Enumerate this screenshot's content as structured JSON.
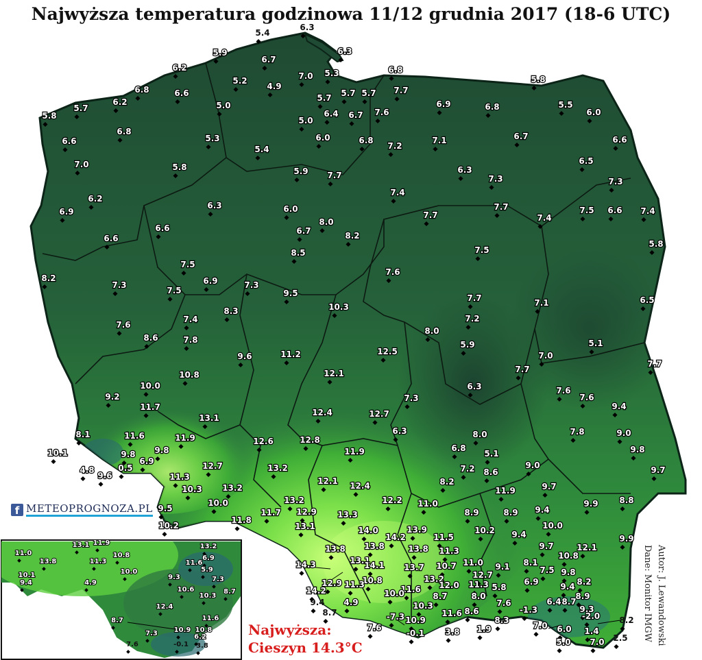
{
  "title": "Najwyższa temperatura godzinowa 11/12 grudnia 2017 (18-6 UTC)",
  "max_note": {
    "line1": "Najwyższa:",
    "line2": "Cieszyn 14.3°C"
  },
  "credits": {
    "author": "Autor: J. Lewandowski",
    "source": "Dane: Monitor IMGW"
  },
  "logo": {
    "icon": "facebook-icon",
    "text": "METEOPROGNOZA.PL"
  },
  "colors": {
    "dark_green": "#1f4a33",
    "mid_green": "#2f7a40",
    "bright_green": "#48c23a",
    "light_green": "#a8f06a",
    "highlight": "#d81d1d"
  },
  "stations": [
    [
      "5.4",
      383,
      52
    ],
    [
      "6.3",
      448,
      44
    ],
    [
      "6.3",
      503,
      79
    ],
    [
      "5.9",
      321,
      81
    ],
    [
      "6.7",
      392,
      91
    ],
    [
      "5.3",
      484,
      111
    ],
    [
      "6.8",
      577,
      106
    ],
    [
      "6.2",
      262,
      103
    ],
    [
      "5.2",
      350,
      122
    ],
    [
      "4.9",
      400,
      130
    ],
    [
      "7.0",
      446,
      115
    ],
    [
      "5.7",
      473,
      147
    ],
    [
      "5.7",
      508,
      140
    ],
    [
      "5.7",
      538,
      140
    ],
    [
      "7.7",
      585,
      136
    ],
    [
      "5.8",
      785,
      120
    ],
    [
      "6.8",
      207,
      135
    ],
    [
      "6.6",
      265,
      140
    ],
    [
      "5.0",
      326,
      158
    ],
    [
      "6.4",
      483,
      170
    ],
    [
      "6.7",
      519,
      172
    ],
    [
      "7.6",
      557,
      168
    ],
    [
      "6.9",
      647,
      156
    ],
    [
      "6.8",
      718,
      160
    ],
    [
      "5.5",
      825,
      157
    ],
    [
      "6.0",
      866,
      168
    ],
    [
      "5.7",
      118,
      162
    ],
    [
      "6.2",
      175,
      153
    ],
    [
      "5.0",
      446,
      180
    ],
    [
      "6.0",
      471,
      205
    ],
    [
      "6.8",
      534,
      209
    ],
    [
      "7.2",
      576,
      217
    ],
    [
      "7.1",
      641,
      209
    ],
    [
      "6.7",
      760,
      203
    ],
    [
      "6.6",
      904,
      208
    ],
    [
      "5.8",
      72,
      173
    ],
    [
      "6.6",
      101,
      210
    ],
    [
      "6.8",
      181,
      196
    ],
    [
      "5.3",
      310,
      206
    ],
    [
      "5.4",
      382,
      222
    ],
    [
      "6.5",
      855,
      239
    ],
    [
      "7.0",
      119,
      244
    ],
    [
      "5.8",
      262,
      248
    ],
    [
      "5.9",
      439,
      254
    ],
    [
      "7.7",
      488,
      260
    ],
    [
      "6.3",
      678,
      252
    ],
    [
      "7.3",
      723,
      265
    ],
    [
      "7.3",
      898,
      269
    ],
    [
      "6.2",
      139,
      294
    ],
    [
      "7.4",
      580,
      285
    ],
    [
      "7.7",
      731,
      306
    ],
    [
      "7.5",
      856,
      311
    ],
    [
      "6.6",
      897,
      311
    ],
    [
      "7.4",
      945,
      312
    ],
    [
      "6.9",
      97,
      313
    ],
    [
      "6.3",
      313,
      304
    ],
    [
      "6.0",
      424,
      309
    ],
    [
      "8.0",
      476,
      328
    ],
    [
      "7.7",
      628,
      318
    ],
    [
      "7.4",
      794,
      322
    ],
    [
      "6.6",
      162,
      352
    ],
    [
      "6.6",
      237,
      337
    ],
    [
      "6.7",
      443,
      341
    ],
    [
      "8.2",
      514,
      348
    ],
    [
      "5.8",
      957,
      360
    ],
    [
      "8.5",
      435,
      373
    ],
    [
      "7.5",
      703,
      369
    ],
    [
      "8.2",
      71,
      410
    ],
    [
      "7.5",
      274,
      390
    ],
    [
      "7.3",
      174,
      420
    ],
    [
      "6.9",
      307,
      414
    ],
    [
      "7.3",
      367,
      420
    ],
    [
      "7.6",
      573,
      401
    ],
    [
      "7.5",
      254,
      428
    ],
    [
      "9.5",
      424,
      432
    ],
    [
      "7.7",
      692,
      439
    ],
    [
      "7.1",
      790,
      446
    ],
    [
      "6.5",
      944,
      442
    ],
    [
      "7.4",
      278,
      470
    ],
    [
      "8.3",
      337,
      458
    ],
    [
      "10.3",
      494,
      452
    ],
    [
      "7.2",
      689,
      469
    ],
    [
      "7.6",
      180,
      478
    ],
    [
      "8.6",
      220,
      497
    ],
    [
      "7.8",
      278,
      500
    ],
    [
      "8.0",
      630,
      487
    ],
    [
      "5.1",
      869,
      505
    ],
    [
      "5.9",
      682,
      507
    ],
    [
      "12.5",
      565,
      517
    ],
    [
      "11.2",
      424,
      521
    ],
    [
      "9.6",
      357,
      524
    ],
    [
      "7.0",
      796,
      523
    ],
    [
      "7.7",
      955,
      535
    ],
    [
      "12.1",
      487,
      549
    ],
    [
      "10.8",
      276,
      551
    ],
    [
      "7.7",
      762,
      543
    ],
    [
      "10.0",
      219,
      567
    ],
    [
      "6.3",
      692,
      568
    ],
    [
      "7.6",
      822,
      574
    ],
    [
      "7.6",
      856,
      584
    ],
    [
      "7.3",
      600,
      585
    ],
    [
      "9.2",
      164,
      583
    ],
    [
      "11.7",
      219,
      598
    ],
    [
      "9.4",
      903,
      597
    ],
    [
      "12.4",
      470,
      606
    ],
    [
      "12.7",
      553,
      608
    ],
    [
      "13.1",
      305,
      614
    ],
    [
      "7.8",
      842,
      634
    ],
    [
      "9.0",
      910,
      636
    ],
    [
      "8.1",
      121,
      638
    ],
    [
      "11.6",
      196,
      640
    ],
    [
      "11.9",
      270,
      643
    ],
    [
      "12.6",
      384,
      648
    ],
    [
      "12.8",
      452,
      646
    ],
    [
      "6.3",
      583,
      633
    ],
    [
      "8.0",
      700,
      638
    ],
    [
      "9.8",
      930,
      660
    ],
    [
      "10.1",
      84,
      665
    ],
    [
      "9.8",
      187,
      667
    ],
    [
      "9.8",
      236,
      661
    ],
    [
      "6.8",
      669,
      658
    ],
    [
      "5.1",
      717,
      666
    ],
    [
      "11.9",
      517,
      663
    ],
    [
      "4.8",
      127,
      690
    ],
    [
      "0.5",
      183,
      687
    ],
    [
      "6.9",
      214,
      677
    ],
    [
      "12.7",
      310,
      684
    ],
    [
      "13.2",
      405,
      687
    ],
    [
      "9.0",
      777,
      683
    ],
    [
      "9.7",
      960,
      690
    ],
    [
      "7.2",
      682,
      688
    ],
    [
      "8.6",
      716,
      693
    ],
    [
      "9.6",
      153,
      698
    ],
    [
      "11.3",
      262,
      700
    ],
    [
      "12.1",
      478,
      706
    ],
    [
      "12.4",
      525,
      713
    ],
    [
      "8.2",
      652,
      707
    ],
    [
      "9.7",
      801,
      714
    ],
    [
      "11.9",
      737,
      720
    ],
    [
      "10.3",
      280,
      718
    ],
    [
      "13.2",
      339,
      716
    ],
    [
      "10.0",
      318,
      738
    ],
    [
      "13.2",
      429,
      734
    ],
    [
      "12.2",
      572,
      734
    ],
    [
      "11.0",
      624,
      739
    ],
    [
      "8.9",
      745,
      752
    ],
    [
      "9.4",
      791,
      748
    ],
    [
      "9.9",
      862,
      739
    ],
    [
      "8.8",
      914,
      734
    ],
    [
      "9.5",
      241,
      746
    ],
    [
      "11.7",
      395,
      752
    ],
    [
      "11.8",
      352,
      763
    ],
    [
      "12.9",
      447,
      751
    ],
    [
      "13.3",
      507,
      755
    ],
    [
      "8.9",
      688,
      752
    ],
    [
      "10.2",
      246,
      771
    ],
    [
      "13.1",
      445,
      772
    ],
    [
      "14.0",
      537,
      778
    ],
    [
      "13.9",
      608,
      777
    ],
    [
      "11.5",
      647,
      788
    ],
    [
      "10.2",
      707,
      778
    ],
    [
      "10.0",
      806,
      771
    ],
    [
      "9.4",
      757,
      784
    ],
    [
      "13.8",
      489,
      805
    ],
    [
      "14.2",
      577,
      788
    ],
    [
      "13.8",
      546,
      801
    ],
    [
      "13.8",
      610,
      805
    ],
    [
      "11.3",
      655,
      808
    ],
    [
      "9.7",
      797,
      801
    ],
    [
      "12.1",
      856,
      803
    ],
    [
      "9.9",
      914,
      790
    ],
    [
      "14.3",
      446,
      828
    ],
    [
      "13.1",
      525,
      822
    ],
    [
      "14.1",
      546,
      829
    ],
    [
      "13.7",
      604,
      832
    ],
    [
      "10.7",
      651,
      830
    ],
    [
      "11.0",
      690,
      825
    ],
    [
      "9.1",
      733,
      831
    ],
    [
      "8.1",
      774,
      825
    ],
    [
      "10.8",
      829,
      815
    ],
    [
      "12.9",
      484,
      855
    ],
    [
      "10.8",
      543,
      851
    ],
    [
      "11.3",
      517,
      857
    ],
    [
      "13.2",
      633,
      849
    ],
    [
      "12.7",
      704,
      843
    ],
    [
      "7.5",
      798,
      836
    ],
    [
      "9.8",
      829,
      839
    ],
    [
      "14.2",
      461,
      866
    ],
    [
      "11.6",
      599,
      864
    ],
    [
      "12.0",
      655,
      858
    ],
    [
      "11.3",
      698,
      857
    ],
    [
      "5.8",
      728,
      861
    ],
    [
      "6.9",
      775,
      853
    ],
    [
      "8.2",
      852,
      853
    ],
    [
      "9.4",
      828,
      860
    ],
    [
      "9.4",
      463,
      883
    ],
    [
      "4.9",
      512,
      883
    ],
    [
      "10.0",
      575,
      870
    ],
    [
      "8.7",
      642,
      874
    ],
    [
      "8.0",
      698,
      874
    ],
    [
      "7.6",
      735,
      884
    ],
    [
      "6.4",
      808,
      882
    ],
    [
      "8.7",
      830,
      882
    ],
    [
      "8.9",
      850,
      874
    ],
    [
      "8.7",
      481,
      898
    ],
    [
      "10.3",
      617,
      888
    ],
    [
      "8.6",
      688,
      896
    ],
    [
      "-1.3",
      771,
      894
    ],
    [
      "9.3",
      856,
      893
    ],
    [
      "7.6",
      546,
      920
    ],
    [
      "-7.3",
      577,
      904
    ],
    [
      "10.9",
      606,
      909
    ],
    [
      "11.6",
      659,
      899
    ],
    [
      "1.9",
      706,
      922
    ],
    [
      "8.3",
      732,
      909
    ],
    [
      "-2.0",
      862,
      903
    ],
    [
      "8.2",
      914,
      909
    ],
    [
      "-0.1",
      606,
      928
    ],
    [
      "3.8",
      660,
      926
    ],
    [
      "7.0",
      788,
      917
    ],
    [
      "6.0",
      823,
      922
    ],
    [
      "1.4",
      863,
      925
    ],
    [
      "5.0",
      822,
      941
    ],
    [
      "7.0",
      871,
      941
    ],
    [
      "2.5",
      905,
      935
    ]
  ],
  "inset_stations": [
    [
      "11.0",
      34,
      810
    ],
    [
      "13.1",
      118,
      798
    ],
    [
      "11.9",
      148,
      795
    ],
    [
      "13.2",
      304,
      800
    ],
    [
      "13.8",
      70,
      822
    ],
    [
      "11.3",
      143,
      822
    ],
    [
      "10.8",
      177,
      813
    ],
    [
      "11.6",
      283,
      824
    ],
    [
      "6.9",
      304,
      817
    ],
    [
      "10.0",
      188,
      837
    ],
    [
      "10.1",
      39,
      842
    ],
    [
      "5.9",
      302,
      834
    ],
    [
      "9.3",
      254,
      845
    ],
    [
      "7.3",
      318,
      848
    ],
    [
      "9.4",
      38,
      853
    ],
    [
      "4.9",
      132,
      853
    ],
    [
      "10.6",
      271,
      863
    ],
    [
      "8.7",
      335,
      866
    ],
    [
      "10.3",
      303,
      872
    ],
    [
      "12.4",
      240,
      888
    ],
    [
      "8.7",
      171,
      908
    ],
    [
      "11.6",
      307,
      905
    ],
    [
      "7.3",
      221,
      927
    ],
    [
      "10.9",
      266,
      922
    ],
    [
      "10.8",
      297,
      922
    ],
    [
      "6.2",
      292,
      932
    ],
    [
      "7.6",
      193,
      943
    ],
    [
      "-0.1",
      264,
      943
    ],
    [
      "3.8",
      295,
      945
    ]
  ]
}
